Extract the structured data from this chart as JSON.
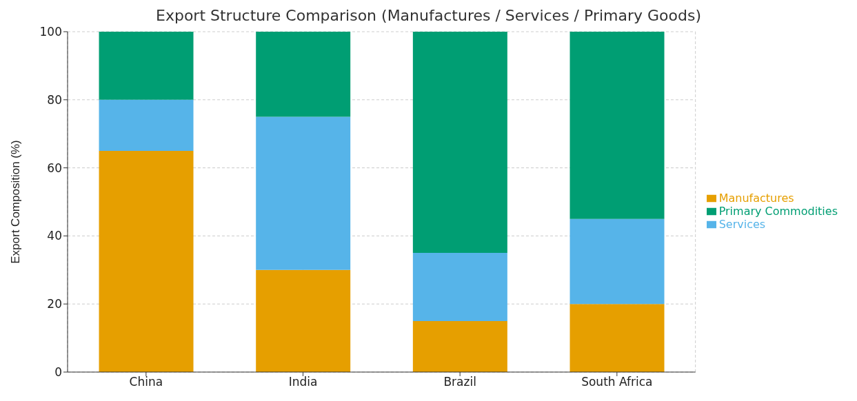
{
  "chart_data": {
    "type": "bar",
    "title": "Export Structure Comparison (Manufactures / Services / Primary Goods)",
    "ylabel": "Export Composition (%)",
    "categories": [
      "China",
      "India",
      "Brazil",
      "South Africa"
    ],
    "stacked": true,
    "series": [
      {
        "name": "Manufactures",
        "color": "#e69f00",
        "values": [
          65,
          30,
          15,
          20
        ]
      },
      {
        "name": "Services",
        "color": "#56b4e9",
        "values": [
          15,
          45,
          20,
          25
        ]
      },
      {
        "name": "Primary Commodities",
        "color": "#009e73",
        "values": [
          20,
          25,
          65,
          55
        ]
      }
    ],
    "ylim": [
      0,
      100
    ],
    "yticks": [
      0,
      20,
      40,
      60,
      80,
      100
    ],
    "grid": true,
    "legend": "right"
  }
}
